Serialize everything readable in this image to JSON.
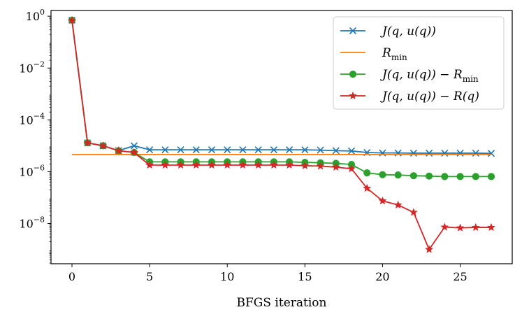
{
  "chart_data": {
    "type": "line",
    "title": "",
    "xlabel": "BFGS iteration",
    "ylabel": "",
    "yscale": "log",
    "xlim": [
      -1.35,
      28.35
    ],
    "ylim_exp": [
      -9.55,
      0.22
    ],
    "x_ticks": [
      0,
      5,
      10,
      15,
      20,
      25
    ],
    "y_ticks": [
      {
        "exp": 0,
        "base": "10",
        "sup": "0"
      },
      {
        "exp": -2,
        "base": "10",
        "sup": "−2"
      },
      {
        "exp": -4,
        "base": "10",
        "sup": "−4"
      },
      {
        "exp": -6,
        "base": "10",
        "sup": "−6"
      },
      {
        "exp": -8,
        "base": "10",
        "sup": "−8"
      }
    ],
    "legend_position": "upper right",
    "x": [
      0,
      1,
      2,
      3,
      4,
      5,
      6,
      7,
      8,
      9,
      10,
      11,
      12,
      13,
      14,
      15,
      16,
      17,
      18,
      19,
      20,
      21,
      22,
      23,
      24,
      25,
      26,
      27
    ],
    "series": [
      {
        "name": "J(q, u(q))",
        "color": "#1f77b4",
        "marker": "x",
        "values": [
          0.7,
          1.3e-05,
          1e-05,
          6.5e-06,
          1e-05,
          7e-06,
          7e-06,
          7e-06,
          7e-06,
          7e-06,
          7e-06,
          7e-06,
          7e-06,
          7e-06,
          7e-06,
          7e-06,
          6.8e-06,
          6.5e-06,
          6.3e-06,
          5.5e-06,
          5.3e-06,
          5.3e-06,
          5.2e-06,
          5.2e-06,
          5.2e-06,
          5.2e-06,
          5.2e-06,
          5.1e-06
        ]
      },
      {
        "name": "R_min",
        "color": "#ff7f0e",
        "marker": "none",
        "values": [
          4.6e-06,
          4.6e-06,
          4.6e-06,
          4.6e-06,
          4.6e-06,
          4.6e-06,
          4.6e-06,
          4.6e-06,
          4.6e-06,
          4.6e-06,
          4.6e-06,
          4.6e-06,
          4.6e-06,
          4.6e-06,
          4.6e-06,
          4.6e-06,
          4.6e-06,
          4.6e-06,
          4.6e-06,
          4.6e-06,
          4.6e-06,
          4.6e-06,
          4.6e-06,
          4.6e-06,
          4.6e-06,
          4.6e-06,
          4.6e-06,
          4.6e-06
        ]
      },
      {
        "name": "J(q, u(q)) − R_min",
        "color": "#2ca02c",
        "marker": "circle",
        "values": [
          0.7,
          1.3e-05,
          1e-05,
          6.5e-06,
          5.5e-06,
          2.4e-06,
          2.4e-06,
          2.4e-06,
          2.4e-06,
          2.4e-06,
          2.4e-06,
          2.4e-06,
          2.4e-06,
          2.4e-06,
          2.4e-06,
          2.3e-06,
          2.2e-06,
          2.1e-06,
          1.9e-06,
          9e-07,
          7.7e-07,
          7.5e-07,
          7e-07,
          6.8e-07,
          6.5e-07,
          6.5e-07,
          6.5e-07,
          6.5e-07
        ]
      },
      {
        "name": "J(q, u(q)) − R(q)",
        "color": "#d62728",
        "marker": "star",
        "values": [
          0.7,
          1.3e-05,
          1e-05,
          6.5e-06,
          5.5e-06,
          1.8e-06,
          1.8e-06,
          1.8e-06,
          1.8e-06,
          1.8e-06,
          1.8e-06,
          1.8e-06,
          1.8e-06,
          1.8e-06,
          1.8e-06,
          1.7e-06,
          1.65e-06,
          1.5e-06,
          1.3e-06,
          2.3e-07,
          7.5e-08,
          5.2e-08,
          2.7e-08,
          1e-09,
          7.3e-09,
          6.8e-09,
          7.1e-09,
          7.1e-09
        ]
      }
    ],
    "legend_entries": [
      {
        "main": "J(q, u(q))",
        "sub": ""
      },
      {
        "main": "R",
        "sub": "min"
      },
      {
        "main": "J(q, u(q)) − R",
        "sub": "min"
      },
      {
        "main": "J(q, u(q)) − R(q)",
        "sub": ""
      }
    ]
  }
}
